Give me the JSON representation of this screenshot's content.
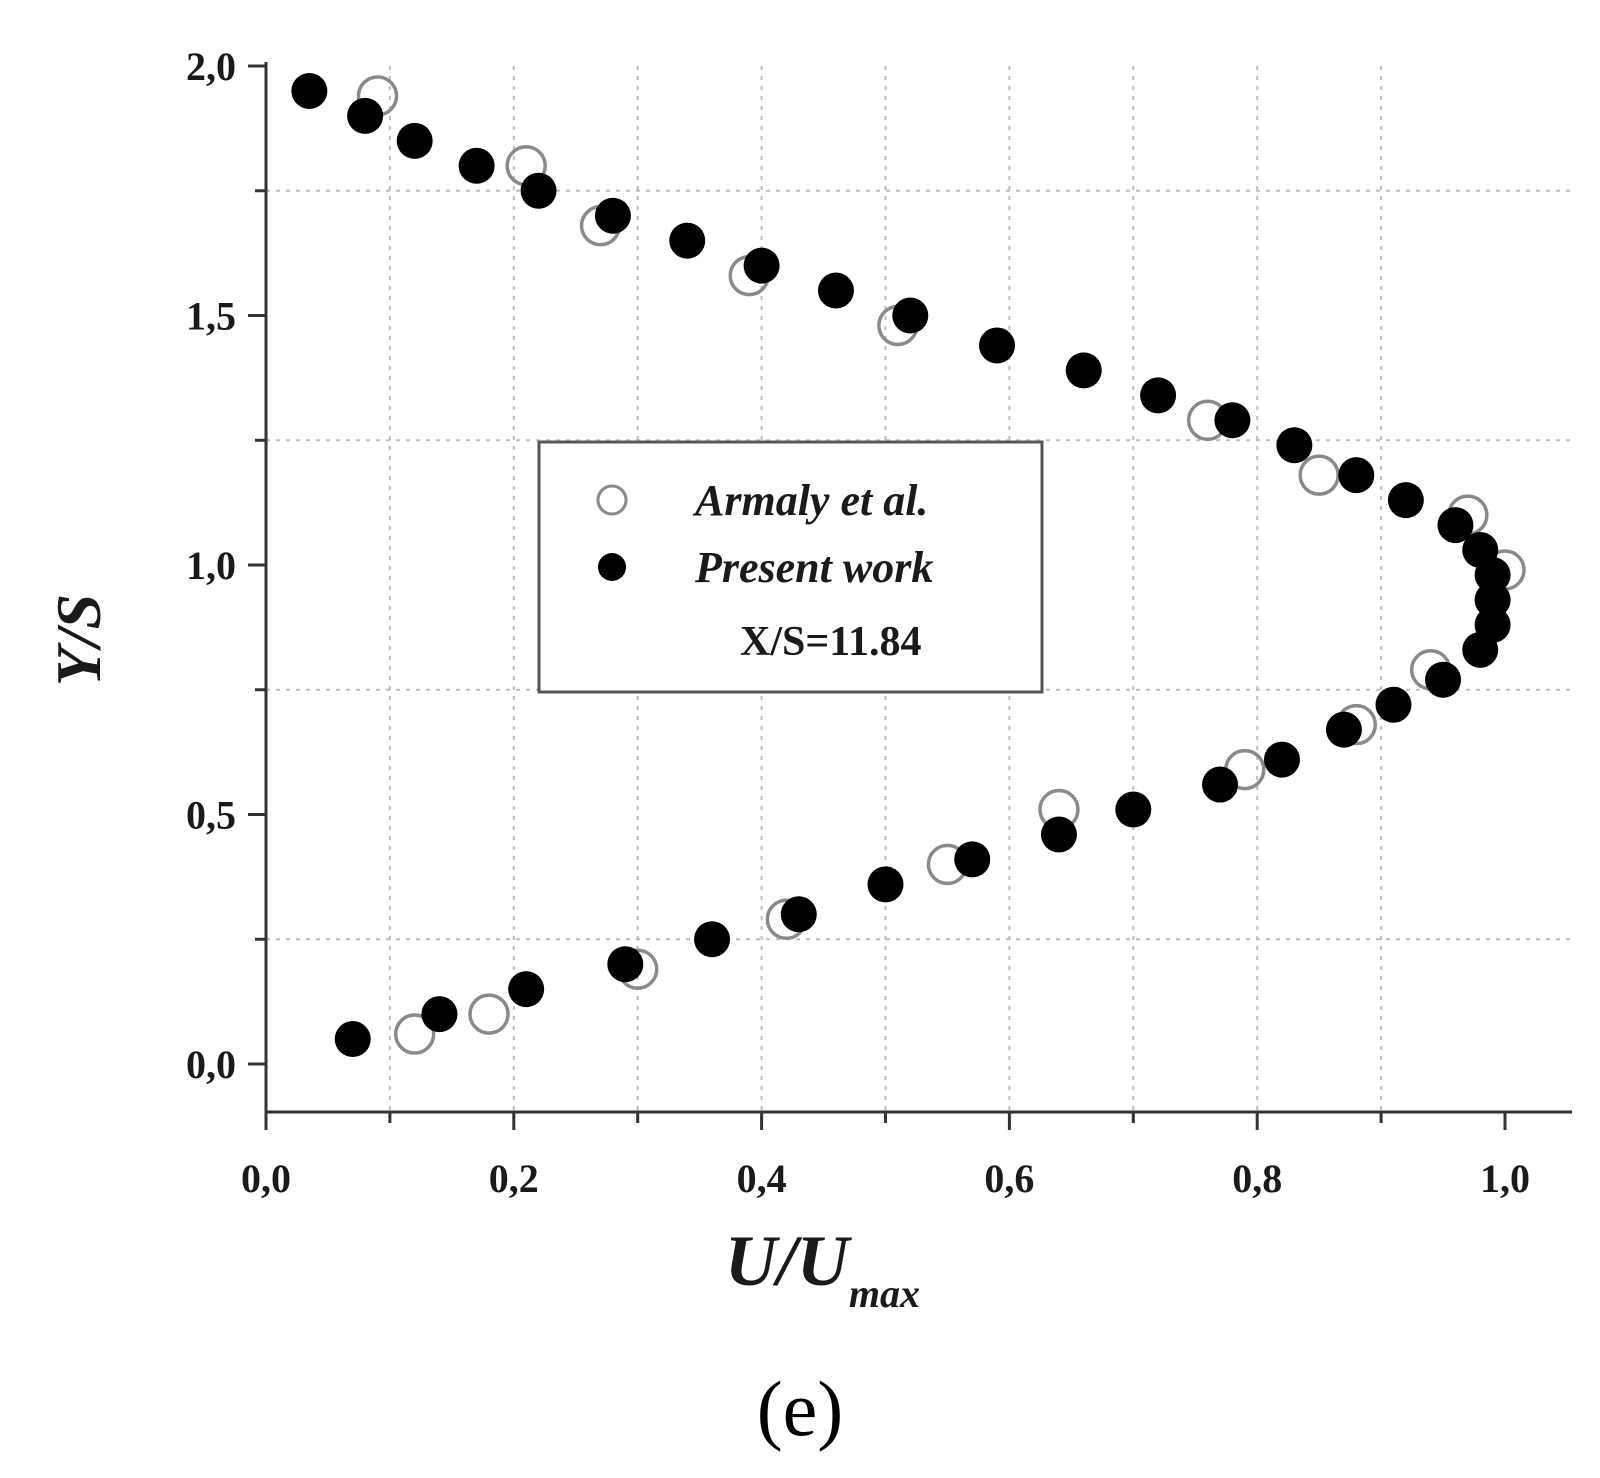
{
  "chart_data": {
    "type": "scatter",
    "xlabel": "U/U",
    "xlabel_subscript": "max",
    "ylabel": "Y/S",
    "xlim": [
      0.0,
      1.05
    ],
    "ylim": [
      -0.1,
      2.0
    ],
    "x_ticks": [
      "0,0",
      "0,2",
      "0,4",
      "0,6",
      "0,8",
      "1,0"
    ],
    "y_ticks": [
      "0,0",
      "0,5",
      "1,0",
      "1,5",
      "2,0"
    ],
    "grid": true,
    "legend_position": "center",
    "annotation": "X/S=11.84",
    "caption": "(e)",
    "series": [
      {
        "name": "Armaly et al.",
        "marker": "open-circle",
        "color": "#8a8a8a",
        "points": [
          [
            0.09,
            1.94
          ],
          [
            0.21,
            1.8
          ],
          [
            0.27,
            1.68
          ],
          [
            0.39,
            1.58
          ],
          [
            0.51,
            1.48
          ],
          [
            0.76,
            1.29
          ],
          [
            0.85,
            1.18
          ],
          [
            0.97,
            1.1
          ],
          [
            1.0,
            0.99
          ],
          [
            0.94,
            0.79
          ],
          [
            0.88,
            0.68
          ],
          [
            0.79,
            0.59
          ],
          [
            0.64,
            0.51
          ],
          [
            0.55,
            0.4
          ],
          [
            0.42,
            0.29
          ],
          [
            0.3,
            0.19
          ],
          [
            0.18,
            0.1
          ],
          [
            0.12,
            0.06
          ]
        ]
      },
      {
        "name": "Present work",
        "marker": "filled-circle",
        "color": "#000000",
        "points": [
          [
            0.035,
            1.95
          ],
          [
            0.08,
            1.9
          ],
          [
            0.12,
            1.85
          ],
          [
            0.17,
            1.8
          ],
          [
            0.22,
            1.75
          ],
          [
            0.28,
            1.7
          ],
          [
            0.34,
            1.65
          ],
          [
            0.4,
            1.6
          ],
          [
            0.46,
            1.55
          ],
          [
            0.52,
            1.5
          ],
          [
            0.59,
            1.44
          ],
          [
            0.66,
            1.39
          ],
          [
            0.72,
            1.34
          ],
          [
            0.78,
            1.29
          ],
          [
            0.83,
            1.24
          ],
          [
            0.88,
            1.18
          ],
          [
            0.92,
            1.13
          ],
          [
            0.96,
            1.08
          ],
          [
            0.98,
            1.03
          ],
          [
            0.99,
            0.98
          ],
          [
            0.99,
            0.93
          ],
          [
            0.99,
            0.88
          ],
          [
            0.98,
            0.83
          ],
          [
            0.95,
            0.77
          ],
          [
            0.91,
            0.72
          ],
          [
            0.87,
            0.67
          ],
          [
            0.82,
            0.61
          ],
          [
            0.77,
            0.56
          ],
          [
            0.7,
            0.51
          ],
          [
            0.64,
            0.46
          ],
          [
            0.57,
            0.41
          ],
          [
            0.5,
            0.36
          ],
          [
            0.43,
            0.3
          ],
          [
            0.36,
            0.25
          ],
          [
            0.29,
            0.2
          ],
          [
            0.21,
            0.15
          ],
          [
            0.14,
            0.1
          ],
          [
            0.07,
            0.05
          ]
        ]
      }
    ]
  }
}
